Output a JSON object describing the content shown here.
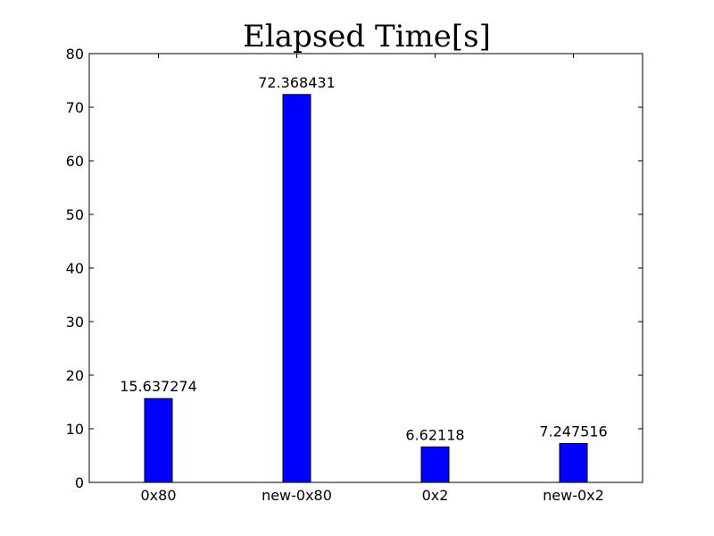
{
  "chart_data": {
    "type": "bar",
    "title": "Elapsed Time[s]",
    "xlabel": "",
    "ylabel": "",
    "categories": [
      "0x80",
      "new-0x80",
      "0x2",
      "new-0x2"
    ],
    "values": [
      15.637274,
      72.368431,
      6.62118,
      7.247516
    ],
    "value_labels": [
      "15.637274",
      "72.368431",
      "6.62118",
      "7.247516"
    ],
    "ylim": [
      0,
      80
    ],
    "yticks": [
      0,
      10,
      20,
      30,
      40,
      50,
      60,
      70,
      80
    ],
    "ytick_labels": [
      "0",
      "10",
      "20",
      "30",
      "40",
      "50",
      "60",
      "70",
      "80"
    ],
    "grid": false,
    "legend": "none",
    "bar_color": "#0000ff"
  }
}
